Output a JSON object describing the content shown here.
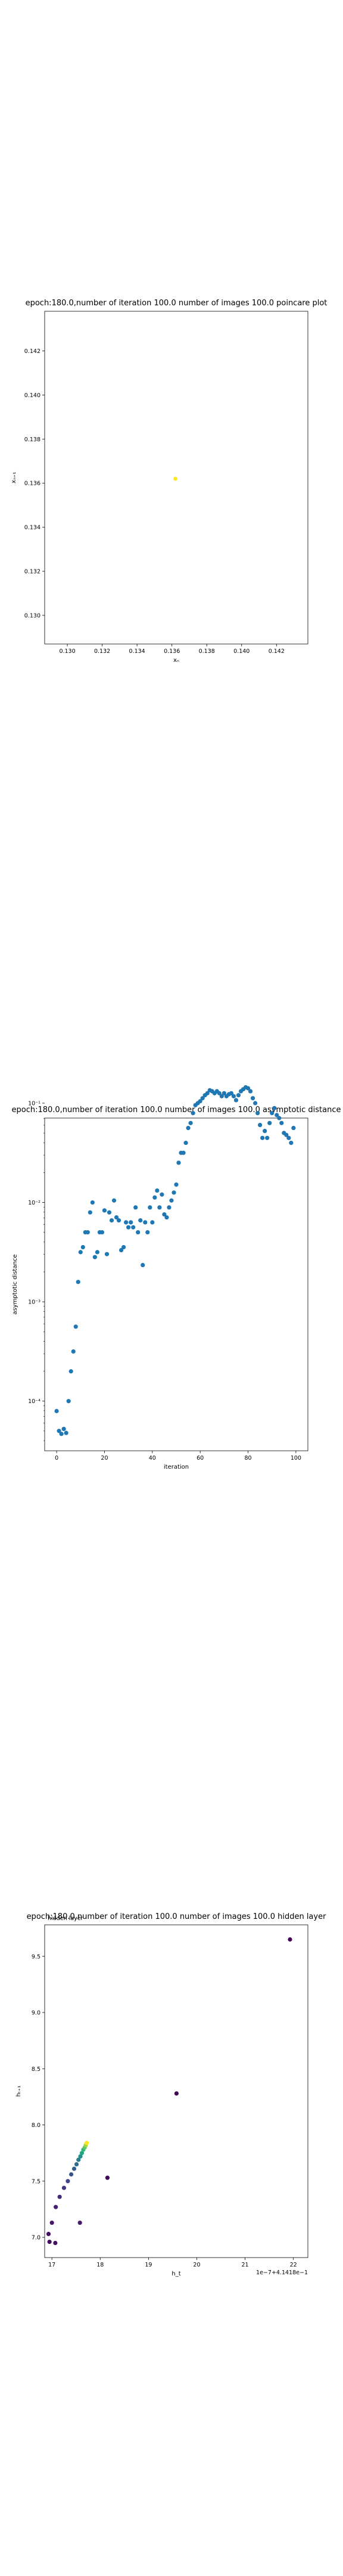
{
  "chart_data": [
    {
      "type": "scatter",
      "title": "epoch:180.0,number of iteration 100.0 number of images 100.0 poincare plot",
      "xlabel": "xₙ",
      "ylabel": "xₙ₊₁",
      "xlim": [
        0.1287,
        0.1438
      ],
      "ylim": [
        0.1287,
        0.1438
      ],
      "xticks": [
        "0.130",
        "0.132",
        "0.134",
        "0.136",
        "0.138",
        "0.140",
        "0.142"
      ],
      "yticks": [
        "0.130",
        "0.132",
        "0.134",
        "0.136",
        "0.138",
        "0.140",
        "0.142"
      ],
      "xtick_values": [
        0.13,
        0.132,
        0.134,
        0.136,
        0.138,
        0.14,
        0.142
      ],
      "ytick_values": [
        0.13,
        0.132,
        0.134,
        0.136,
        0.138,
        0.14,
        0.142
      ],
      "grid": false,
      "colors": {
        "point": "#fde725"
      },
      "points": [
        {
          "x": 0.1362,
          "y": 0.1362
        }
      ]
    },
    {
      "type": "scatter",
      "title": "epoch:180.0,number of iteration 100.0  number of images 100.0 asymptotic distance",
      "xlabel": "iteration",
      "ylabel": "asymptotic distance",
      "xlim": [
        -5,
        105
      ],
      "ylim_log10": [
        -4.5,
        -1.15
      ],
      "yscale": "log",
      "xticks": [
        "0",
        "20",
        "40",
        "60",
        "80",
        "100"
      ],
      "xtick_values": [
        0,
        20,
        40,
        60,
        80,
        100
      ],
      "yticks": [
        "10⁻⁴",
        "10⁻³",
        "10⁻²",
        "10⁻¹"
      ],
      "ytick_log10": [
        -4,
        -3,
        -2,
        -1
      ],
      "grid": false,
      "colors": {
        "point": "#1f77b4"
      },
      "x": [
        0,
        1,
        2,
        3,
        4,
        5,
        6,
        7,
        8,
        9,
        10,
        11,
        12,
        13,
        14,
        15,
        16,
        17,
        18,
        19,
        20,
        21,
        22,
        23,
        24,
        25,
        26,
        27,
        28,
        29,
        30,
        31,
        32,
        33,
        34,
        35,
        36,
        37,
        38,
        39,
        40,
        41,
        42,
        43,
        44,
        45,
        46,
        47,
        48,
        49,
        50,
        51,
        52,
        53,
        54,
        55,
        56,
        57,
        58,
        59,
        60,
        61,
        62,
        63,
        64,
        65,
        66,
        67,
        68,
        69,
        70,
        71,
        72,
        73,
        74,
        75,
        76,
        77,
        78,
        79,
        80,
        81,
        82,
        83,
        84,
        85,
        86,
        87,
        88,
        89,
        90,
        91,
        92,
        93,
        94,
        95,
        96,
        97,
        98,
        99
      ],
      "y_log10": [
        -4.1,
        -4.3,
        -4.33,
        -4.28,
        -4.32,
        -4.0,
        -3.7,
        -3.5,
        -3.25,
        -2.8,
        -2.5,
        -2.45,
        -2.3,
        -2.3,
        -2.1,
        -2.0,
        -2.55,
        -2.5,
        -2.3,
        -2.3,
        -2.08,
        -2.52,
        -2.1,
        -2.18,
        -1.98,
        -2.15,
        -2.18,
        -2.48,
        -2.45,
        -2.2,
        -2.25,
        -2.2,
        -2.25,
        -2.05,
        -2.3,
        -2.18,
        -2.63,
        -2.2,
        -2.3,
        -2.05,
        -2.2,
        -1.95,
        -1.88,
        -2.05,
        -1.92,
        -2.12,
        -2.15,
        -2.05,
        -1.98,
        -1.9,
        -1.82,
        -1.6,
        -1.5,
        -1.5,
        -1.4,
        -1.25,
        -1.2,
        -1.1,
        -1.02,
        -1.0,
        -0.98,
        -0.95,
        -0.92,
        -0.9,
        -0.87,
        -0.88,
        -0.9,
        -0.88,
        -0.9,
        -0.93,
        -0.9,
        -0.93,
        -0.91,
        -0.9,
        -0.93,
        -0.97,
        -0.92,
        -0.88,
        -0.86,
        -0.84,
        -0.85,
        -0.88,
        -0.95,
        -1.0,
        -1.1,
        -1.22,
        -1.35,
        -1.28,
        -1.35,
        -1.2,
        -1.1,
        -1.05,
        -1.12,
        -1.15,
        -1.2,
        -1.3,
        -1.32,
        -1.35,
        -1.4,
        -1.25
      ]
    },
    {
      "type": "scatter",
      "title": "epoch:180.0,number of iteration 100.0  number of images 100.0 hidden layer",
      "xlabel": "h_t",
      "ylabel": "hₜ₊₁",
      "offset_label": "1e−7+4.1418e−1",
      "corner_text": "hidden layer",
      "xlim": [
        16.85,
        22.3
      ],
      "ylim": [
        6.82,
        9.78
      ],
      "xticks": [
        "17",
        "18",
        "19",
        "20",
        "21",
        "22"
      ],
      "xtick_values": [
        17,
        18,
        19,
        20,
        21,
        22
      ],
      "yticks": [
        "7.0",
        "7.5",
        "8.0",
        "8.5",
        "9.0",
        "9.5"
      ],
      "ytick_values": [
        7.0,
        7.5,
        8.0,
        8.5,
        9.0,
        9.5
      ],
      "grid": false,
      "colormap": "viridis",
      "points": [
        {
          "x": 21.93,
          "y": 9.65,
          "c": 0.0
        },
        {
          "x": 19.58,
          "y": 8.28,
          "c": 0.01
        },
        {
          "x": 18.15,
          "y": 7.53,
          "c": 0.02
        },
        {
          "x": 16.95,
          "y": 6.96,
          "c": 0.03
        },
        {
          "x": 16.93,
          "y": 7.03,
          "c": 0.04
        },
        {
          "x": 17.07,
          "y": 6.95,
          "c": 0.05
        },
        {
          "x": 17.0,
          "y": 7.13,
          "c": 0.06
        },
        {
          "x": 17.58,
          "y": 7.13,
          "c": 0.07
        },
        {
          "x": 17.08,
          "y": 7.27,
          "c": 0.09
        },
        {
          "x": 17.16,
          "y": 7.36,
          "c": 0.12
        },
        {
          "x": 17.25,
          "y": 7.44,
          "c": 0.16
        },
        {
          "x": 17.33,
          "y": 7.5,
          "c": 0.2
        },
        {
          "x": 17.4,
          "y": 7.56,
          "c": 0.25
        },
        {
          "x": 17.46,
          "y": 7.61,
          "c": 0.3
        },
        {
          "x": 17.51,
          "y": 7.65,
          "c": 0.36
        },
        {
          "x": 17.55,
          "y": 7.69,
          "c": 0.42
        },
        {
          "x": 17.59,
          "y": 7.72,
          "c": 0.5
        },
        {
          "x": 17.62,
          "y": 7.75,
          "c": 0.58
        },
        {
          "x": 17.65,
          "y": 7.78,
          "c": 0.66
        },
        {
          "x": 17.68,
          "y": 7.8,
          "c": 0.75
        },
        {
          "x": 17.7,
          "y": 7.82,
          "c": 0.85
        },
        {
          "x": 17.72,
          "y": 7.84,
          "c": 1.0
        }
      ]
    }
  ]
}
